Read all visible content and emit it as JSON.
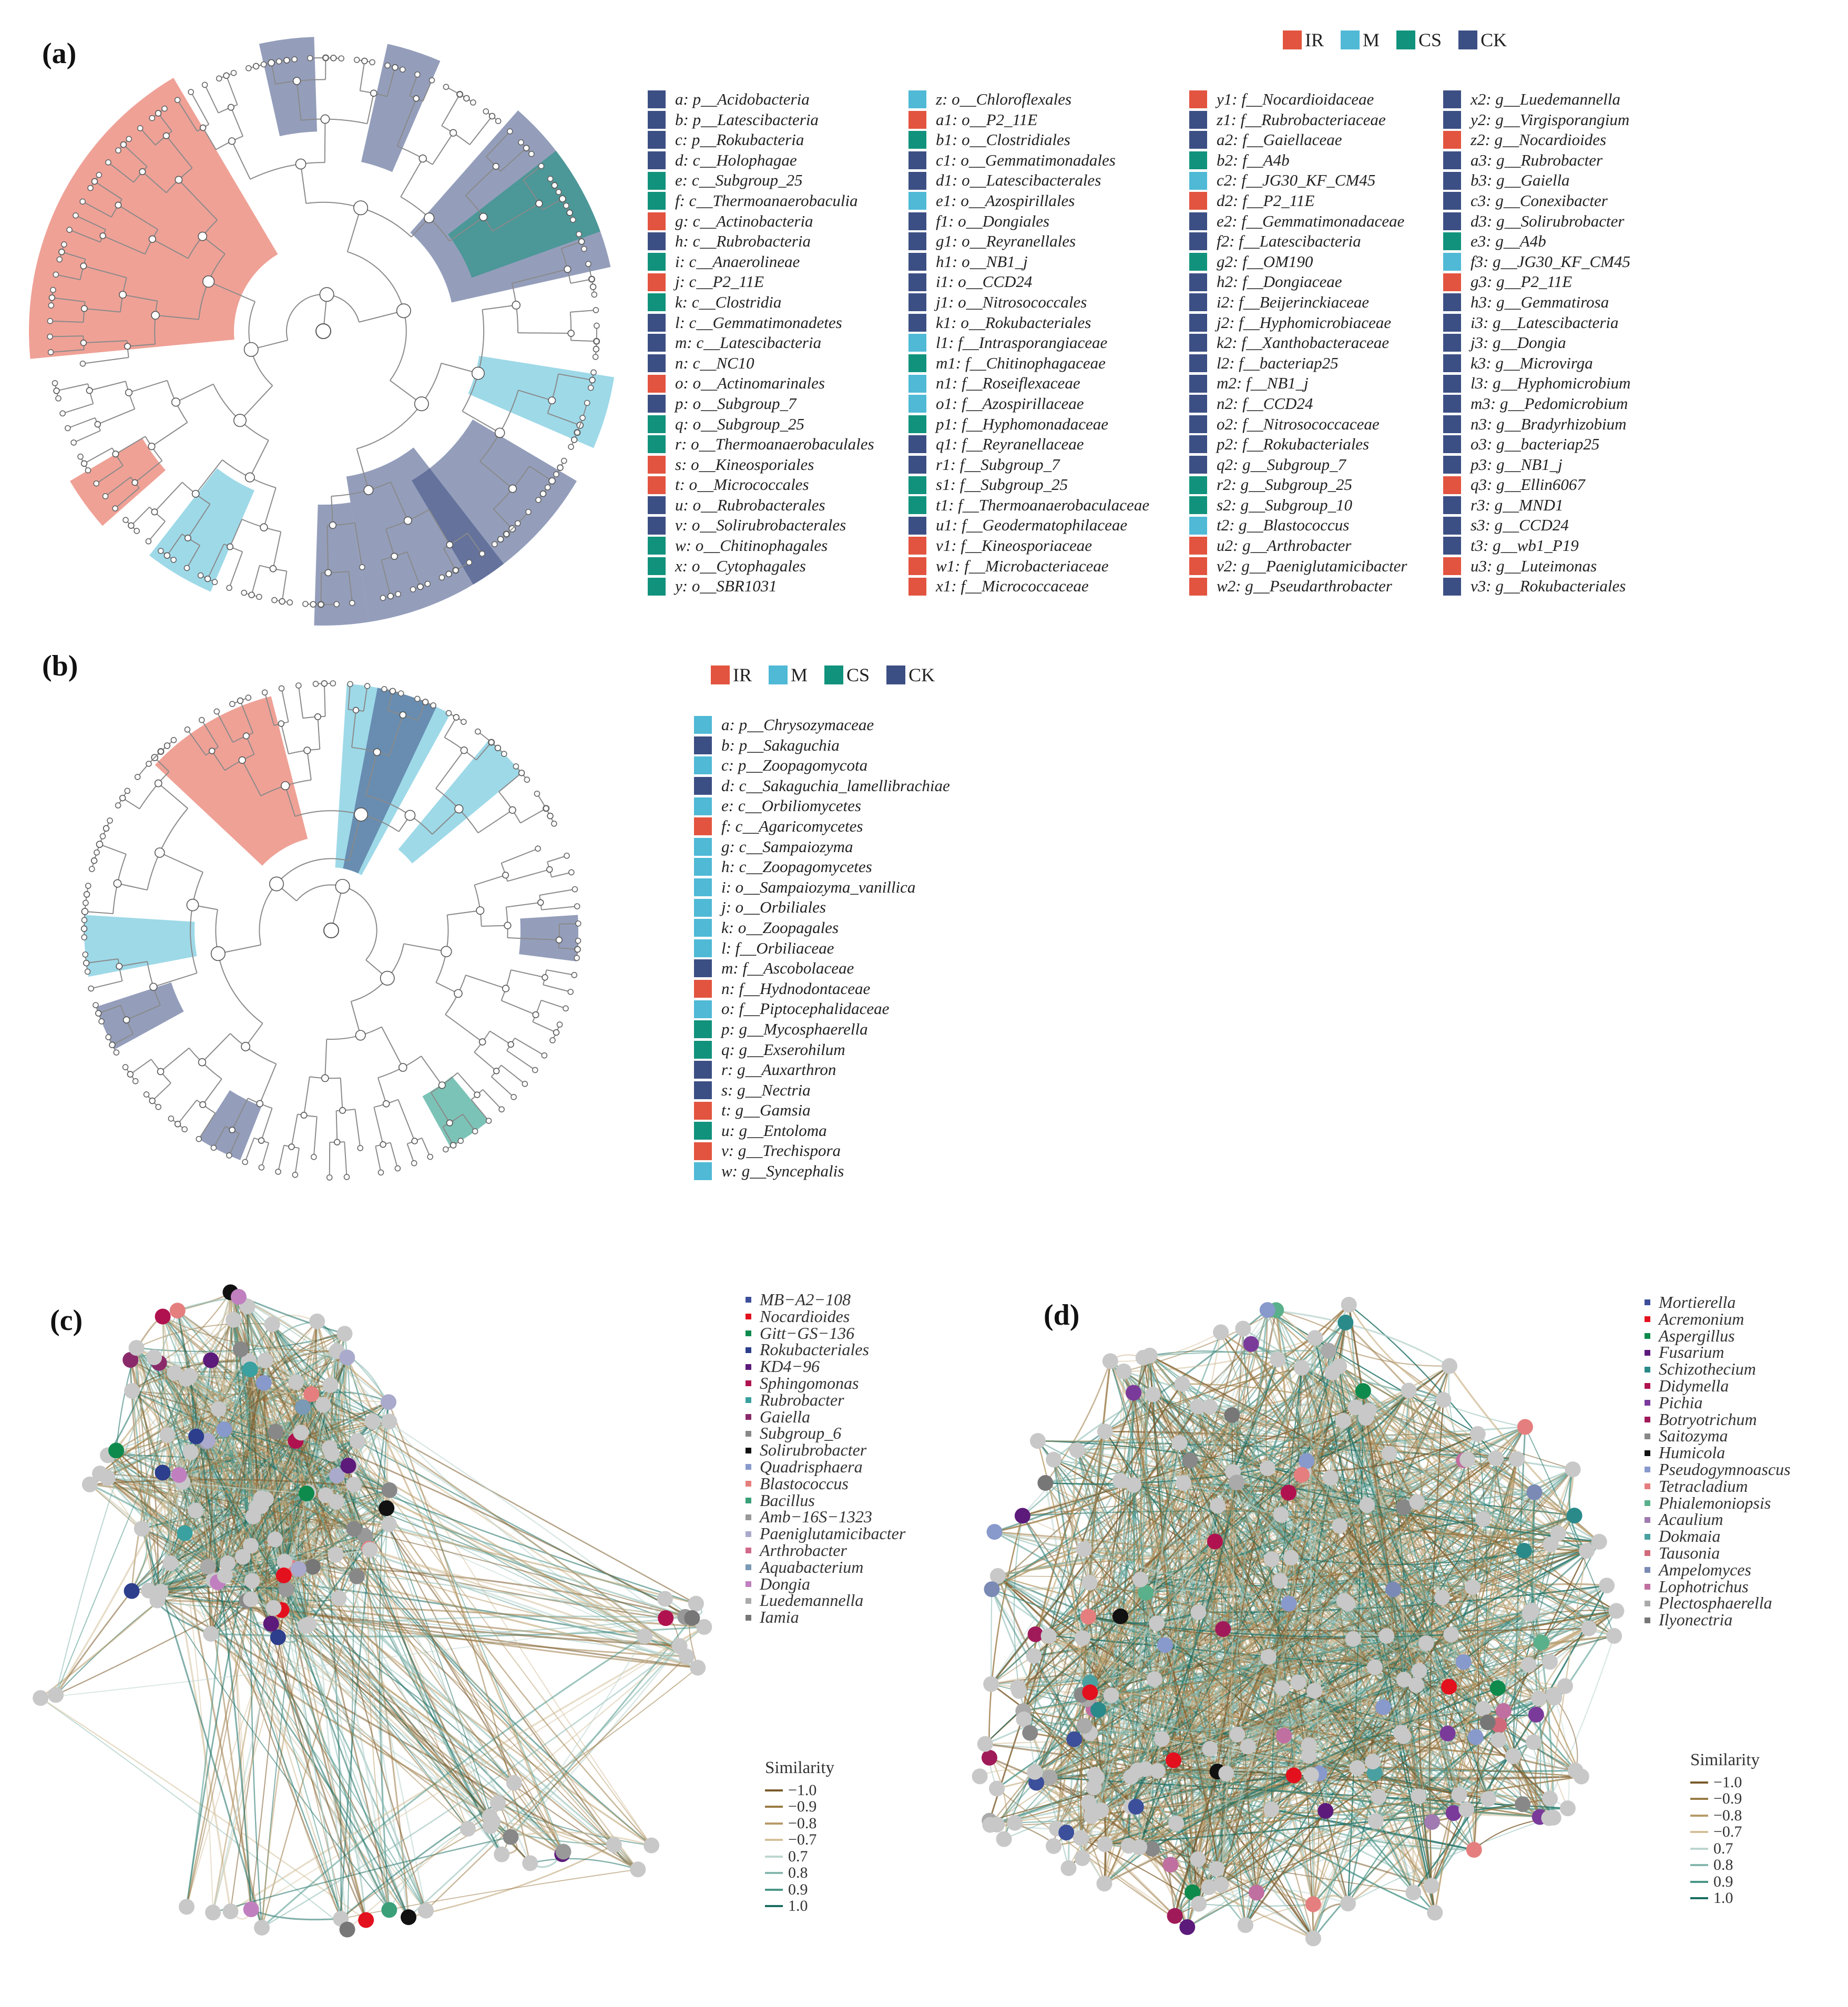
{
  "panels": {
    "a": "(a)",
    "b": "(b)",
    "c": "(c)",
    "d": "(d)"
  },
  "groups_a": [
    {
      "name": "IR",
      "color": "#e2543f"
    },
    {
      "name": "M",
      "color": "#4fb9d6"
    },
    {
      "name": "CS",
      "color": "#11927c"
    },
    {
      "name": "CK",
      "color": "#3c4f84"
    }
  ],
  "groups_b": [
    {
      "name": "IR",
      "color": "#e2543f"
    },
    {
      "name": "M",
      "color": "#4fb9d6"
    },
    {
      "name": "CS",
      "color": "#11927c"
    },
    {
      "name": "CK",
      "color": "#3c4f84"
    }
  ],
  "taxa_a": [
    [
      {
        "label": "a: p__Acidobacteria",
        "g": "CK"
      },
      {
        "label": "b: p__Latescibacteria",
        "g": "CK"
      },
      {
        "label": "c: p__Rokubacteria",
        "g": "CK"
      },
      {
        "label": "d: c__Holophagae",
        "g": "CK"
      },
      {
        "label": "e: c__Subgroup_25",
        "g": "CS"
      },
      {
        "label": "f: c__Thermoanaerobaculia",
        "g": "CS"
      },
      {
        "label": "g: c__Actinobacteria",
        "g": "IR"
      },
      {
        "label": "h: c__Rubrobacteria",
        "g": "CK"
      },
      {
        "label": "i: c__Anaerolineae",
        "g": "CS"
      },
      {
        "label": "j: c__P2_11E",
        "g": "IR"
      },
      {
        "label": "k: c__Clostridia",
        "g": "CS"
      },
      {
        "label": "l: c__Gemmatimonadetes",
        "g": "CK"
      },
      {
        "label": "m: c__Latescibacteria",
        "g": "CK"
      },
      {
        "label": "n: c__NC10",
        "g": "CK"
      },
      {
        "label": "o: o__Actinomarinales",
        "g": "IR"
      },
      {
        "label": "p: o__Subgroup_7",
        "g": "CK"
      },
      {
        "label": "q: o__Subgroup_25",
        "g": "CS"
      },
      {
        "label": "r: o__Thermoanaerobaculales",
        "g": "CS"
      },
      {
        "label": "s: o__Kineosporiales",
        "g": "IR"
      },
      {
        "label": "t: o__Micrococcales",
        "g": "IR"
      },
      {
        "label": "u: o__Rubrobacterales",
        "g": "CK"
      },
      {
        "label": "v: o__Solirubrobacterales",
        "g": "CK"
      },
      {
        "label": "w: o__Chitinophagales",
        "g": "CS"
      },
      {
        "label": "x: o__Cytophagales",
        "g": "CS"
      },
      {
        "label": "y: o__SBR1031",
        "g": "CS"
      }
    ],
    [
      {
        "label": "z: o__Chloroflexales",
        "g": "M"
      },
      {
        "label": "a1: o__P2_11E",
        "g": "IR"
      },
      {
        "label": "b1: o__Clostridiales",
        "g": "CS"
      },
      {
        "label": "c1: o__Gemmatimonadales",
        "g": "CK"
      },
      {
        "label": "d1: o__Latescibacterales",
        "g": "CK"
      },
      {
        "label": "e1: o__Azospirillales",
        "g": "M"
      },
      {
        "label": "f1: o__Dongiales",
        "g": "CK"
      },
      {
        "label": "g1: o__Reyranellales",
        "g": "CK"
      },
      {
        "label": "h1: o__NB1_j",
        "g": "CK"
      },
      {
        "label": "i1: o__CCD24",
        "g": "CK"
      },
      {
        "label": "j1: o__Nitrosococcales",
        "g": "CK"
      },
      {
        "label": "k1: o__Rokubacteriales",
        "g": "CK"
      },
      {
        "label": "l1: f__Intrasporangiaceae",
        "g": "M"
      },
      {
        "label": "m1: f__Chitinophagaceae",
        "g": "CS"
      },
      {
        "label": "n1: f__Roseiflexaceae",
        "g": "M"
      },
      {
        "label": "o1: f__Azospirillaceae",
        "g": "M"
      },
      {
        "label": "p1: f__Hyphomonadaceae",
        "g": "CS"
      },
      {
        "label": "q1: f__Reyranellaceae",
        "g": "CK"
      },
      {
        "label": "r1: f__Subgroup_7",
        "g": "CK"
      },
      {
        "label": "s1: f__Subgroup_25",
        "g": "CS"
      },
      {
        "label": "t1: f__Thermoanaerobaculaceae",
        "g": "CS"
      },
      {
        "label": "u1: f__Geodermatophilaceae",
        "g": "CK"
      },
      {
        "label": "v1: f__Kineosporiaceae",
        "g": "IR"
      },
      {
        "label": "w1: f__Microbacteriaceae",
        "g": "IR"
      },
      {
        "label": "x1: f__Micrococcaceae",
        "g": "IR"
      }
    ],
    [
      {
        "label": "y1: f__Nocardioidaceae",
        "g": "IR"
      },
      {
        "label": "z1: f__Rubrobacteriaceae",
        "g": "CK"
      },
      {
        "label": "a2: f__Gaiellaceae",
        "g": "CK"
      },
      {
        "label": "b2: f__A4b",
        "g": "CS"
      },
      {
        "label": "c2: f__JG30_KF_CM45",
        "g": "M"
      },
      {
        "label": "d2: f__P2_11E",
        "g": "IR"
      },
      {
        "label": "e2: f__Gemmatimonadaceae",
        "g": "CK"
      },
      {
        "label": "f2: f__Latescibacteria",
        "g": "CK"
      },
      {
        "label": "g2: f__OM190",
        "g": "CS"
      },
      {
        "label": "h2: f__Dongiaceae",
        "g": "CK"
      },
      {
        "label": "i2: f__Beijerinckiaceae",
        "g": "CK"
      },
      {
        "label": "j2: f__Hyphomicrobiaceae",
        "g": "CK"
      },
      {
        "label": "k2: f__Xanthobacteraceae",
        "g": "CK"
      },
      {
        "label": "l2: f__bacteriap25",
        "g": "CK"
      },
      {
        "label": "m2: f__NB1_j",
        "g": "CK"
      },
      {
        "label": "n2: f__CCD24",
        "g": "CK"
      },
      {
        "label": "o2: f__Nitrosococcaceae",
        "g": "CK"
      },
      {
        "label": "p2: f__Rokubacteriales",
        "g": "CK"
      },
      {
        "label": "q2: g__Subgroup_7",
        "g": "CK"
      },
      {
        "label": "r2: g__Subgroup_25",
        "g": "CS"
      },
      {
        "label": "s2: g__Subgroup_10",
        "g": "CS"
      },
      {
        "label": "t2: g__Blastococcus",
        "g": "M"
      },
      {
        "label": "u2: g__Arthrobacter",
        "g": "IR"
      },
      {
        "label": "v2: g__Paeniglutamicibacter",
        "g": "IR"
      },
      {
        "label": "w2: g__Pseudarthrobacter",
        "g": "IR"
      }
    ],
    [
      {
        "label": "x2: g__Luedemannella",
        "g": "CK"
      },
      {
        "label": "y2: g__Virgisporangium",
        "g": "CK"
      },
      {
        "label": "z2: g__Nocardioides",
        "g": "IR"
      },
      {
        "label": "a3: g__Rubrobacter",
        "g": "CK"
      },
      {
        "label": "b3: g__Gaiella",
        "g": "CK"
      },
      {
        "label": "c3: g__Conexibacter",
        "g": "CK"
      },
      {
        "label": "d3: g__Solirubrobacter",
        "g": "CK"
      },
      {
        "label": "e3: g__A4b",
        "g": "CS"
      },
      {
        "label": "f3: g__JG30_KF_CM45",
        "g": "M"
      },
      {
        "label": "g3: g__P2_11E",
        "g": "IR"
      },
      {
        "label": "h3: g__Gemmatirosa",
        "g": "CK"
      },
      {
        "label": "i3: g__Latescibacteria",
        "g": "CK"
      },
      {
        "label": "j3: g__Dongia",
        "g": "CK"
      },
      {
        "label": "k3: g__Microvirga",
        "g": "CK"
      },
      {
        "label": "l3: g__Hyphomicrobium",
        "g": "CK"
      },
      {
        "label": "m3: g__Pedomicrobium",
        "g": "CK"
      },
      {
        "label": "n3: g__Bradyrhizobium",
        "g": "CK"
      },
      {
        "label": "o3: g__bacteriap25",
        "g": "CK"
      },
      {
        "label": "p3: g__NB1_j",
        "g": "CK"
      },
      {
        "label": "q3: g__Ellin6067",
        "g": "IR"
      },
      {
        "label": "r3: g__MND1",
        "g": "CK"
      },
      {
        "label": "s3: g__CCD24",
        "g": "CK"
      },
      {
        "label": "t3: g__wb1_P19",
        "g": "CK"
      },
      {
        "label": "u3: g__Luteimonas",
        "g": "IR"
      },
      {
        "label": "v3: g__Rokubacteriales",
        "g": "CK"
      }
    ]
  ],
  "taxa_b": [
    {
      "label": "a: p__Chrysozymaceae",
      "g": "M"
    },
    {
      "label": "b: p__Sakaguchia",
      "g": "CK"
    },
    {
      "label": "c: p__Zoopagomycota",
      "g": "M"
    },
    {
      "label": "d: c__Sakaguchia_lamellibrachiae",
      "g": "CK"
    },
    {
      "label": "e: c__Orbiliomycetes",
      "g": "M"
    },
    {
      "label": "f: c__Agaricomycetes",
      "g": "IR"
    },
    {
      "label": "g: c__Sampaiozyma",
      "g": "M"
    },
    {
      "label": "h: c__Zoopagomycetes",
      "g": "M"
    },
    {
      "label": "i: o__Sampaiozyma_vanillica",
      "g": "M"
    },
    {
      "label": "j: o__Orbiliales",
      "g": "M"
    },
    {
      "label": "k: o__Zoopagales",
      "g": "M"
    },
    {
      "label": "l: f__Orbiliaceae",
      "g": "M"
    },
    {
      "label": "m: f__Ascobolaceae",
      "g": "CK"
    },
    {
      "label": "n: f__Hydnodontaceae",
      "g": "IR"
    },
    {
      "label": "o: f__Piptocephalidaceae",
      "g": "M"
    },
    {
      "label": "p: g__Mycosphaerella",
      "g": "CS"
    },
    {
      "label": "q: g__Exserohilum",
      "g": "CS"
    },
    {
      "label": "r: g__Auxarthron",
      "g": "CK"
    },
    {
      "label": "s: g__Nectria",
      "g": "CK"
    },
    {
      "label": "t: g__Gamsia",
      "g": "IR"
    },
    {
      "label": "u: g__Entoloma",
      "g": "CS"
    },
    {
      "label": "v: g__Trechispora",
      "g": "IR"
    },
    {
      "label": "w: g__Syncephalis",
      "g": "M"
    }
  ],
  "network_c": {
    "legend": [
      {
        "label": "MB−A2−108",
        "color": "#3c4f9a"
      },
      {
        "label": "Nocardioides",
        "color": "#e3101e"
      },
      {
        "label": "Gitt−GS−136",
        "color": "#0e8a4d"
      },
      {
        "label": "Rokubacteriales",
        "color": "#2c3e8c"
      },
      {
        "label": "KD4−96",
        "color": "#5c1a7a"
      },
      {
        "label": "Sphingomonas",
        "color": "#b0124f"
      },
      {
        "label": "Rubrobacter",
        "color": "#3aa0a0"
      },
      {
        "label": "Gaiella",
        "color": "#8a2a6a"
      },
      {
        "label": "Subgroup_6",
        "color": "#888888"
      },
      {
        "label": "Solirubrobacter",
        "color": "#111111"
      },
      {
        "label": "Quadrisphaera",
        "color": "#8899cc"
      },
      {
        "label": "Blastococcus",
        "color": "#e57e7e"
      },
      {
        "label": "Bacillus",
        "color": "#3aa07a"
      },
      {
        "label": "Amb−16S−1323",
        "color": "#999999"
      },
      {
        "label": "Paeniglutamicibacter",
        "color": "#aaaacc"
      },
      {
        "label": "Arthrobacter",
        "color": "#d06a8a"
      },
      {
        "label": "Aquabacterium",
        "color": "#7a9ab5"
      },
      {
        "label": "Dongia",
        "color": "#c080c0"
      },
      {
        "label": "Luedemannella",
        "color": "#aaaaaa"
      },
      {
        "label": "Iamia",
        "color": "#777777"
      }
    ],
    "similarity_title": "Similarity",
    "similarity": [
      {
        "label": "−1.0",
        "color": "#7a5a2a"
      },
      {
        "label": "−0.9",
        "color": "#9a7a45"
      },
      {
        "label": "−0.8",
        "color": "#b89a68"
      },
      {
        "label": "−0.7",
        "color": "#d4c09a"
      },
      {
        "label": "0.7",
        "color": "#bcd6d0"
      },
      {
        "label": "0.8",
        "color": "#86b8ae"
      },
      {
        "label": "0.9",
        "color": "#4a9688"
      },
      {
        "label": "1.0",
        "color": "#1a6e62"
      }
    ]
  },
  "network_d": {
    "legend": [
      {
        "label": "Mortierella",
        "color": "#3c4f9a"
      },
      {
        "label": "Acremonium",
        "color": "#e3101e"
      },
      {
        "label": "Aspergillus",
        "color": "#0e8a4d"
      },
      {
        "label": "Fusarium",
        "color": "#5c1a7a"
      },
      {
        "label": "Schizothecium",
        "color": "#2a8a8a"
      },
      {
        "label": "Didymella",
        "color": "#b0124f"
      },
      {
        "label": "Pichia",
        "color": "#7a3a9a"
      },
      {
        "label": "Botryotrichum",
        "color": "#a01a5a"
      },
      {
        "label": "Saitozyma",
        "color": "#888888"
      },
      {
        "label": "Humicola",
        "color": "#111111"
      },
      {
        "label": "Pseudogymnoascus",
        "color": "#8899cc"
      },
      {
        "label": "Tetracladium",
        "color": "#e57e7e"
      },
      {
        "label": "Phialemoniopsis",
        "color": "#5ab08a"
      },
      {
        "label": "Acaulium",
        "color": "#a07ab0"
      },
      {
        "label": "Dokmaia",
        "color": "#4aa0a0"
      },
      {
        "label": "Tausonia",
        "color": "#d06a7a"
      },
      {
        "label": "Ampelomyces",
        "color": "#7a8ab5"
      },
      {
        "label": "Lophotrichus",
        "color": "#c070a0"
      },
      {
        "label": "Plectosphaerella",
        "color": "#aaaaaa"
      },
      {
        "label": "Ilyonectria",
        "color": "#777777"
      }
    ],
    "similarity_title": "Similarity",
    "similarity": [
      {
        "label": "−1.0",
        "color": "#7a5a2a"
      },
      {
        "label": "−0.9",
        "color": "#9a7a45"
      },
      {
        "label": "−0.8",
        "color": "#b89a68"
      },
      {
        "label": "−0.7",
        "color": "#d4c09a"
      },
      {
        "label": "0.7",
        "color": "#bcd6d0"
      },
      {
        "label": "0.8",
        "color": "#86b8ae"
      },
      {
        "label": "0.9",
        "color": "#4a9688"
      },
      {
        "label": "1.0",
        "color": "#1a6e62"
      }
    ]
  }
}
